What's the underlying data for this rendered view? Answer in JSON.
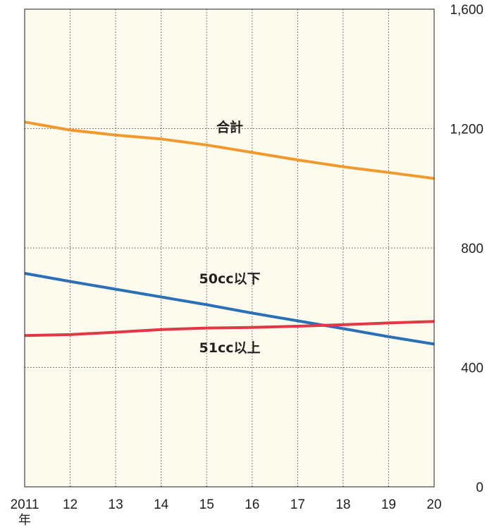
{
  "chart_data": {
    "type": "line",
    "x": [
      "2011",
      "12",
      "13",
      "14",
      "15",
      "16",
      "17",
      "18",
      "19",
      "20"
    ],
    "x_unit": "年",
    "ylim": [
      0,
      1600
    ],
    "yticks": [
      "0",
      "400",
      "800",
      "1,200",
      "1,600"
    ],
    "y_axis_side": "right",
    "grid": "dotted",
    "background": "#fdfbee",
    "series": [
      {
        "name": "合計",
        "color": "#f0992e",
        "values": [
          1222,
          1195,
          1178,
          1165,
          1145,
          1120,
          1095,
          1072,
          1053,
          1033
        ]
      },
      {
        "name": "50cc以下",
        "color": "#2b6fb6",
        "values": [
          715,
          688,
          662,
          636,
          610,
          582,
          556,
          530,
          503,
          478
        ]
      },
      {
        "name": "51cc以上",
        "color": "#e23744",
        "values": [
          507,
          510,
          518,
          527,
          532,
          534,
          538,
          543,
          549,
          554
        ]
      }
    ]
  }
}
